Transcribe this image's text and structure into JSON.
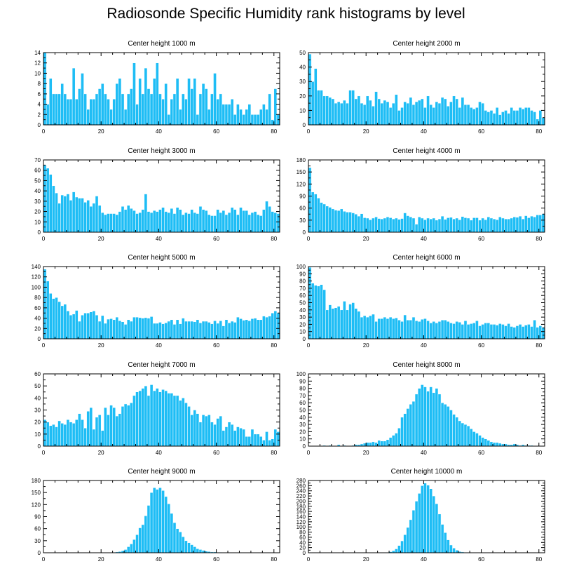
{
  "title": "Radiosonde Specific Humidity rank histograms by level",
  "colors": {
    "bar": "#1ebdf5",
    "bar_edge": "#ffffff",
    "axis": "#000000"
  },
  "chart_data": [
    {
      "type": "bar",
      "title": "Center height 1000 m",
      "xlabel": "",
      "ylabel": "",
      "xlim": [
        0,
        82
      ],
      "ylim": [
        0,
        14
      ],
      "xticks": [
        0,
        20,
        40,
        60,
        80
      ],
      "yticks": [
        0,
        2,
        4,
        6,
        8,
        10,
        12,
        14
      ],
      "values": [
        14,
        4,
        9,
        6,
        6,
        6,
        8,
        6,
        5,
        5,
        11,
        5,
        7,
        10,
        6,
        3,
        5,
        5,
        6,
        7,
        8,
        6,
        5,
        3,
        5,
        8,
        9,
        6,
        3,
        6,
        7,
        12,
        4,
        9,
        6,
        11,
        7,
        6,
        9,
        12,
        6,
        5,
        8,
        2,
        5,
        6,
        9,
        3,
        6,
        5,
        9,
        7,
        9,
        2,
        6,
        8,
        7,
        3,
        6,
        10,
        5,
        6,
        4,
        4,
        4,
        5,
        2,
        4,
        3,
        2,
        3,
        4,
        2,
        2,
        2,
        3,
        4,
        3,
        6,
        1,
        7,
        2
      ]
    },
    {
      "type": "bar",
      "title": "Center height 2000 m",
      "xlabel": "",
      "ylabel": "",
      "xlim": [
        0,
        82
      ],
      "ylim": [
        0,
        50
      ],
      "xticks": [
        0,
        20,
        40,
        60,
        80
      ],
      "yticks": [
        0,
        10,
        20,
        30,
        40,
        50
      ],
      "values": [
        49,
        30,
        39,
        24,
        24,
        20,
        20,
        19,
        18,
        15,
        16,
        15,
        17,
        15,
        24,
        24,
        18,
        20,
        15,
        14,
        20,
        17,
        13,
        23,
        18,
        15,
        17,
        16,
        12,
        15,
        21,
        10,
        12,
        16,
        15,
        19,
        14,
        16,
        17,
        18,
        12,
        20,
        14,
        12,
        16,
        15,
        19,
        18,
        13,
        16,
        20,
        18,
        12,
        19,
        14,
        14,
        12,
        11,
        12,
        16,
        15,
        10,
        9,
        10,
        8,
        12,
        7,
        9,
        10,
        8,
        12,
        10,
        10,
        12,
        11,
        12,
        12,
        10,
        9,
        4,
        10,
        5
      ]
    },
    {
      "type": "bar",
      "title": "Center height 3000 m",
      "xlabel": "",
      "ylabel": "",
      "xlim": [
        0,
        82
      ],
      "ylim": [
        0,
        70
      ],
      "xticks": [
        0,
        20,
        40,
        60,
        80
      ],
      "yticks": [
        0,
        10,
        20,
        30,
        40,
        50,
        60,
        70
      ],
      "values": [
        65,
        62,
        56,
        45,
        38,
        28,
        36,
        35,
        37,
        31,
        39,
        34,
        33,
        33,
        29,
        31,
        25,
        28,
        35,
        26,
        19,
        17,
        18,
        18,
        18,
        17,
        20,
        25,
        22,
        26,
        23,
        21,
        18,
        19,
        22,
        37,
        20,
        19,
        21,
        20,
        22,
        24,
        20,
        19,
        23,
        18,
        24,
        22,
        17,
        19,
        18,
        22,
        19,
        18,
        25,
        22,
        21,
        17,
        16,
        16,
        22,
        19,
        21,
        17,
        19,
        24,
        22,
        17,
        24,
        21,
        21,
        17,
        19,
        20,
        17,
        16,
        22,
        30,
        25,
        20,
        19,
        18
      ]
    },
    {
      "type": "bar",
      "title": "Center height 4000 m",
      "xlabel": "",
      "ylabel": "",
      "xlim": [
        0,
        82
      ],
      "ylim": [
        0,
        180
      ],
      "xticks": [
        0,
        20,
        40,
        60,
        80
      ],
      "yticks": [
        0,
        30,
        60,
        90,
        120,
        150,
        180
      ],
      "values": [
        161,
        100,
        95,
        85,
        74,
        70,
        65,
        62,
        58,
        55,
        54,
        58,
        52,
        50,
        50,
        48,
        45,
        40,
        46,
        36,
        35,
        31,
        35,
        38,
        34,
        33,
        35,
        38,
        36,
        33,
        35,
        32,
        34,
        48,
        41,
        38,
        35,
        20,
        38,
        35,
        31,
        35,
        33,
        35,
        30,
        33,
        40,
        32,
        36,
        37,
        33,
        35,
        31,
        39,
        36,
        35,
        30,
        36,
        36,
        30,
        35,
        31,
        38,
        35,
        33,
        31,
        38,
        35,
        33,
        33,
        35,
        38,
        37,
        40,
        33,
        41,
        36,
        40,
        38,
        43,
        43,
        46
      ]
    },
    {
      "type": "bar",
      "title": "Center height 5000 m",
      "xlabel": "",
      "ylabel": "",
      "xlim": [
        0,
        82
      ],
      "ylim": [
        0,
        140
      ],
      "xticks": [
        0,
        20,
        40,
        60,
        80
      ],
      "yticks": [
        0,
        20,
        40,
        60,
        80,
        100,
        120,
        140
      ],
      "values": [
        135,
        112,
        88,
        78,
        80,
        72,
        64,
        67,
        54,
        46,
        48,
        55,
        34,
        46,
        50,
        50,
        52,
        54,
        46,
        34,
        45,
        30,
        38,
        39,
        37,
        42,
        35,
        33,
        28,
        37,
        34,
        42,
        42,
        41,
        40,
        41,
        40,
        43,
        30,
        30,
        32,
        29,
        31,
        34,
        37,
        28,
        37,
        29,
        40,
        34,
        34,
        34,
        33,
        37,
        31,
        34,
        34,
        32,
        29,
        35,
        30,
        35,
        25,
        37,
        31,
        34,
        32,
        42,
        39,
        36,
        37,
        35,
        39,
        40,
        37,
        37,
        44,
        42,
        44,
        50,
        54,
        50
      ]
    },
    {
      "type": "bar",
      "title": "Center height 6000 m",
      "xlabel": "",
      "ylabel": "",
      "xlim": [
        0,
        82
      ],
      "ylim": [
        0,
        100
      ],
      "xticks": [
        0,
        20,
        40,
        60,
        80
      ],
      "yticks": [
        0,
        10,
        20,
        30,
        40,
        50,
        60,
        70,
        80,
        90,
        100
      ],
      "values": [
        99,
        77,
        74,
        73,
        75,
        68,
        40,
        47,
        42,
        43,
        45,
        40,
        52,
        40,
        48,
        50,
        42,
        38,
        30,
        32,
        30,
        32,
        34,
        24,
        28,
        28,
        30,
        28,
        30,
        28,
        29,
        26,
        24,
        33,
        26,
        26,
        30,
        25,
        24,
        27,
        28,
        25,
        22,
        24,
        22,
        24,
        26,
        26,
        24,
        22,
        21,
        24,
        23,
        20,
        25,
        20,
        21,
        22,
        25,
        18,
        20,
        22,
        22,
        20,
        20,
        19,
        21,
        20,
        18,
        21,
        17,
        16,
        18,
        20,
        17,
        19,
        20,
        17,
        26,
        16,
        18,
        16
      ]
    },
    {
      "type": "bar",
      "title": "Center height 7000 m",
      "xlabel": "",
      "ylabel": "",
      "xlim": [
        0,
        82
      ],
      "ylim": [
        0,
        60
      ],
      "xticks": [
        0,
        20,
        40,
        60,
        80
      ],
      "yticks": [
        0,
        10,
        20,
        30,
        40,
        50,
        60
      ],
      "values": [
        22,
        20,
        17,
        18,
        16,
        21,
        19,
        18,
        22,
        20,
        19,
        22,
        27,
        22,
        15,
        29,
        32,
        14,
        24,
        26,
        13,
        32,
        26,
        34,
        32,
        25,
        27,
        33,
        35,
        34,
        36,
        42,
        45,
        46,
        48,
        50,
        42,
        51,
        46,
        48,
        45,
        47,
        46,
        44,
        44,
        42,
        42,
        38,
        40,
        36,
        33,
        26,
        30,
        27,
        20,
        26,
        25,
        26,
        20,
        18,
        23,
        25,
        13,
        16,
        20,
        18,
        13,
        16,
        15,
        14,
        8,
        8,
        14,
        10,
        10,
        8,
        5,
        12,
        5,
        6,
        14,
        12
      ]
    },
    {
      "type": "bar",
      "title": "Center height 8000 m",
      "xlabel": "",
      "ylabel": "",
      "xlim": [
        0,
        82
      ],
      "ylim": [
        0,
        100
      ],
      "xticks": [
        0,
        20,
        40,
        60,
        80
      ],
      "yticks": [
        0,
        10,
        20,
        30,
        40,
        50,
        60,
        70,
        80,
        90,
        100
      ],
      "values": [
        0,
        0,
        0,
        0,
        0,
        1,
        0,
        1,
        0,
        0,
        2,
        0,
        1,
        0,
        0,
        1,
        2,
        2,
        3,
        4,
        5,
        5,
        6,
        5,
        8,
        7,
        7,
        9,
        12,
        15,
        18,
        25,
        40,
        45,
        52,
        58,
        62,
        72,
        80,
        85,
        82,
        76,
        82,
        74,
        80,
        72,
        60,
        58,
        55,
        50,
        44,
        40,
        35,
        32,
        30,
        28,
        24,
        20,
        18,
        15,
        12,
        10,
        8,
        6,
        5,
        5,
        4,
        3,
        3,
        2,
        2,
        3,
        2,
        1,
        2,
        1,
        1,
        1,
        0,
        0,
        0,
        0
      ]
    },
    {
      "type": "bar",
      "title": "Center height 9000 m",
      "xlabel": "",
      "ylabel": "",
      "xlim": [
        0,
        82
      ],
      "ylim": [
        0,
        180
      ],
      "xticks": [
        0,
        20,
        40,
        60,
        80
      ],
      "yticks": [
        0,
        30,
        60,
        90,
        120,
        150,
        180
      ],
      "values": [
        0,
        0,
        0,
        0,
        0,
        0,
        0,
        0,
        0,
        0,
        0,
        0,
        0,
        0,
        0,
        0,
        0,
        0,
        0,
        0,
        0,
        0,
        0,
        0,
        1,
        2,
        3,
        5,
        8,
        15,
        22,
        33,
        45,
        62,
        70,
        92,
        118,
        150,
        162,
        158,
        162,
        155,
        140,
        122,
        98,
        75,
        60,
        52,
        40,
        30,
        25,
        20,
        15,
        10,
        8,
        6,
        4,
        3,
        2,
        2,
        1,
        1,
        0,
        0,
        0,
        0,
        0,
        0,
        0,
        0,
        0,
        0,
        0,
        0,
        0,
        0,
        0,
        0,
        0,
        0,
        0,
        0
      ]
    },
    {
      "type": "bar",
      "title": "Center height 10000 m",
      "xlabel": "",
      "ylabel": "",
      "xlim": [
        0,
        82
      ],
      "ylim": [
        0,
        280
      ],
      "xticks": [
        0,
        20,
        40,
        60,
        80
      ],
      "yticks": [
        0,
        20,
        40,
        60,
        80,
        100,
        120,
        140,
        160,
        180,
        200,
        220,
        240,
        260,
        280
      ],
      "values": [
        0,
        0,
        0,
        0,
        0,
        0,
        0,
        0,
        0,
        0,
        0,
        0,
        0,
        0,
        0,
        0,
        0,
        0,
        0,
        0,
        0,
        0,
        0,
        0,
        0,
        0,
        1,
        2,
        4,
        8,
        15,
        28,
        46,
        70,
        98,
        128,
        165,
        200,
        230,
        260,
        270,
        262,
        248,
        220,
        190,
        150,
        110,
        78,
        50,
        30,
        18,
        10,
        5,
        3,
        2,
        1,
        0,
        0,
        0,
        0,
        0,
        0,
        0,
        0,
        0,
        0,
        0,
        0,
        0,
        0,
        0,
        0,
        0,
        0,
        0,
        0,
        0,
        0,
        0,
        0,
        0,
        0
      ]
    }
  ]
}
